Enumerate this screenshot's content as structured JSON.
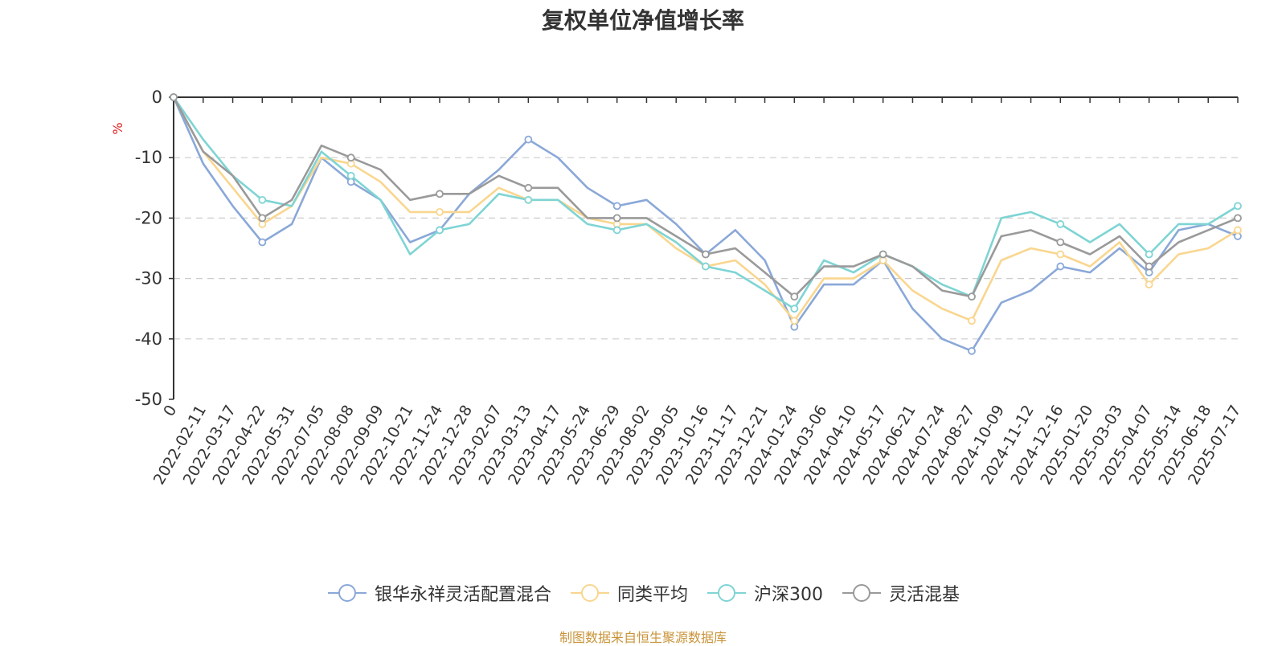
{
  "chart_data": {
    "type": "line",
    "title": "复权单位净值增长率",
    "xlabel": "",
    "ylabel": "%",
    "ylim": [
      -50,
      0
    ],
    "yticks": [
      0,
      -10,
      -20,
      -30,
      -40,
      -50
    ],
    "grid": true,
    "legend_position": "bottom-center",
    "x_ticks": [
      "0",
      "2022-02-11",
      "2022-03-17",
      "2022-04-22",
      "2022-05-31",
      "2022-07-05",
      "2022-08-08",
      "2022-09-09",
      "2022-10-21",
      "2022-11-24",
      "2022-12-28",
      "2023-02-07",
      "2023-03-13",
      "2023-04-17",
      "2023-05-24",
      "2023-06-29",
      "2023-08-02",
      "2023-09-05",
      "2023-10-16",
      "2023-11-17",
      "2023-12-21",
      "2024-01-24",
      "2024-03-06",
      "2024-04-10",
      "2024-05-17",
      "2024-06-21",
      "2024-07-24",
      "2024-08-27",
      "2024-10-09",
      "2024-11-12",
      "2024-12-16",
      "2025-01-20",
      "2025-03-03",
      "2025-04-07",
      "2025-05-14",
      "2025-06-18",
      "2025-07-17"
    ],
    "x": [
      "0",
      "2022-02-11",
      "2022-03-17",
      "2022-04-22",
      "2022-05-31",
      "2022-07-05",
      "2022-08-08",
      "2022-09-09",
      "2022-10-21",
      "2022-11-24",
      "2022-12-28",
      "2023-02-07",
      "2023-03-13",
      "2023-04-17",
      "2023-05-24",
      "2023-06-29",
      "2023-08-02",
      "2023-09-05",
      "2023-10-16",
      "2023-11-17",
      "2023-12-21",
      "2024-01-24",
      "2024-03-06",
      "2024-04-10",
      "2024-05-17",
      "2024-06-21",
      "2024-07-24",
      "2024-08-27",
      "2024-10-09",
      "2024-11-12",
      "2024-12-16",
      "2025-01-20",
      "2025-03-03",
      "2025-04-07",
      "2025-05-14",
      "2025-06-18",
      "2025-07-17"
    ],
    "series": [
      {
        "name": "银华永祥灵活配置混合",
        "color": "#8aa8d8",
        "values": [
          0,
          -11,
          -18,
          -24,
          -21,
          -10,
          -14,
          -17,
          -24,
          -22,
          -16,
          -12,
          -7,
          -10,
          -15,
          -18,
          -17,
          -21,
          -26,
          -22,
          -27,
          -38,
          -31,
          -31,
          -27,
          -35,
          -40,
          -42,
          -34,
          -32,
          -28,
          -29,
          -25,
          -29,
          -22,
          -21,
          -23
        ]
      },
      {
        "name": "同类平均",
        "color": "#f9d68f",
        "values": [
          0,
          -9,
          -15,
          -21,
          -18,
          -10,
          -11,
          -14,
          -19,
          -19,
          -19,
          -15,
          -17,
          -17,
          -20,
          -21,
          -21,
          -25,
          -28,
          -27,
          -31,
          -37,
          -30,
          -30,
          -27,
          -32,
          -35,
          -37,
          -27,
          -25,
          -26,
          -28,
          -24,
          -31,
          -26,
          -25,
          -22
        ]
      },
      {
        "name": "沪深300",
        "color": "#7fd4d4",
        "values": [
          0,
          -7,
          -13,
          -17,
          -18,
          -9,
          -13,
          -17,
          -26,
          -22,
          -21,
          -16,
          -17,
          -17,
          -21,
          -22,
          -21,
          -24,
          -28,
          -29,
          -32,
          -35,
          -27,
          -29,
          -26,
          -28,
          -31,
          -33,
          -20,
          -19,
          -21,
          -24,
          -21,
          -26,
          -21,
          -21,
          -18
        ]
      },
      {
        "name": "灵活混基",
        "color": "#9a9a9a",
        "values": [
          0,
          -9,
          -13,
          -20,
          -17,
          -8,
          -10,
          -12,
          -17,
          -16,
          -16,
          -13,
          -15,
          -15,
          -20,
          -20,
          -20,
          -23,
          -26,
          -25,
          -29,
          -33,
          -28,
          -28,
          -26,
          -28,
          -32,
          -33,
          -23,
          -22,
          -24,
          -26,
          -23,
          -28,
          -24,
          -22,
          -20
        ]
      }
    ]
  },
  "source_text": "制图数据来自恒生聚源数据库"
}
